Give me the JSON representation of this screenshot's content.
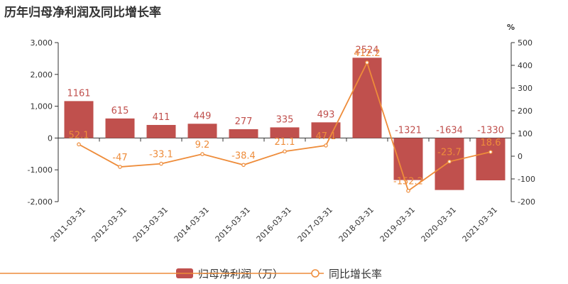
{
  "title": {
    "text": "历年归母净利润及同比增长率"
  },
  "colors": {
    "bar": "#c0504d",
    "line": "#ee8c3a"
  },
  "chart_data": {
    "type": "bar",
    "title": "历年归母净利润及同比增长率",
    "categories": [
      "2011-03-31",
      "2012-03-31",
      "2013-03-31",
      "2014-03-31",
      "2015-03-31",
      "2016-03-31",
      "2017-03-31",
      "2018-03-31",
      "2019-03-31",
      "2020-03-31",
      "2021-03-31"
    ],
    "series": [
      {
        "name": "归母净利润（万）",
        "type": "bar",
        "axis": "left",
        "values": [
          1161,
          615,
          411,
          449,
          277,
          335,
          493,
          2524,
          -1321,
          -1634,
          -1330
        ],
        "labels": [
          "1161",
          "615",
          "411",
          "449",
          "277",
          "335",
          "493",
          "2524",
          "-1321",
          "-1634",
          "-1330"
        ]
      },
      {
        "name": "同比增长率",
        "type": "line",
        "axis": "right",
        "values": [
          52.1,
          -47,
          -33.1,
          9.2,
          -38.4,
          21.1,
          47.1,
          412.2,
          -152.2,
          -23.7,
          18.6
        ],
        "labels": [
          "52.1",
          "-47",
          "-33.1",
          "9.2",
          "-38.4",
          "21.1",
          "47.1",
          "412.2",
          "-152.2",
          "-23.7",
          "18.6"
        ]
      }
    ],
    "y_left": {
      "min": -2000,
      "max": 3000,
      "ticks": [
        3000,
        2000,
        1000,
        0,
        -1000,
        -2000
      ],
      "tick_labels": [
        "3,000",
        "2,000",
        "1,000",
        "0",
        "-1,000",
        "-2,000"
      ]
    },
    "y_right": {
      "unit": "%",
      "min": -200,
      "max": 500,
      "ticks": [
        500,
        400,
        300,
        200,
        100,
        0,
        -100,
        -200
      ],
      "tick_labels": [
        "500",
        "400",
        "300",
        "200",
        "100",
        "0",
        "-100",
        "-200"
      ]
    },
    "grid": false,
    "legend": "bottom-center"
  }
}
